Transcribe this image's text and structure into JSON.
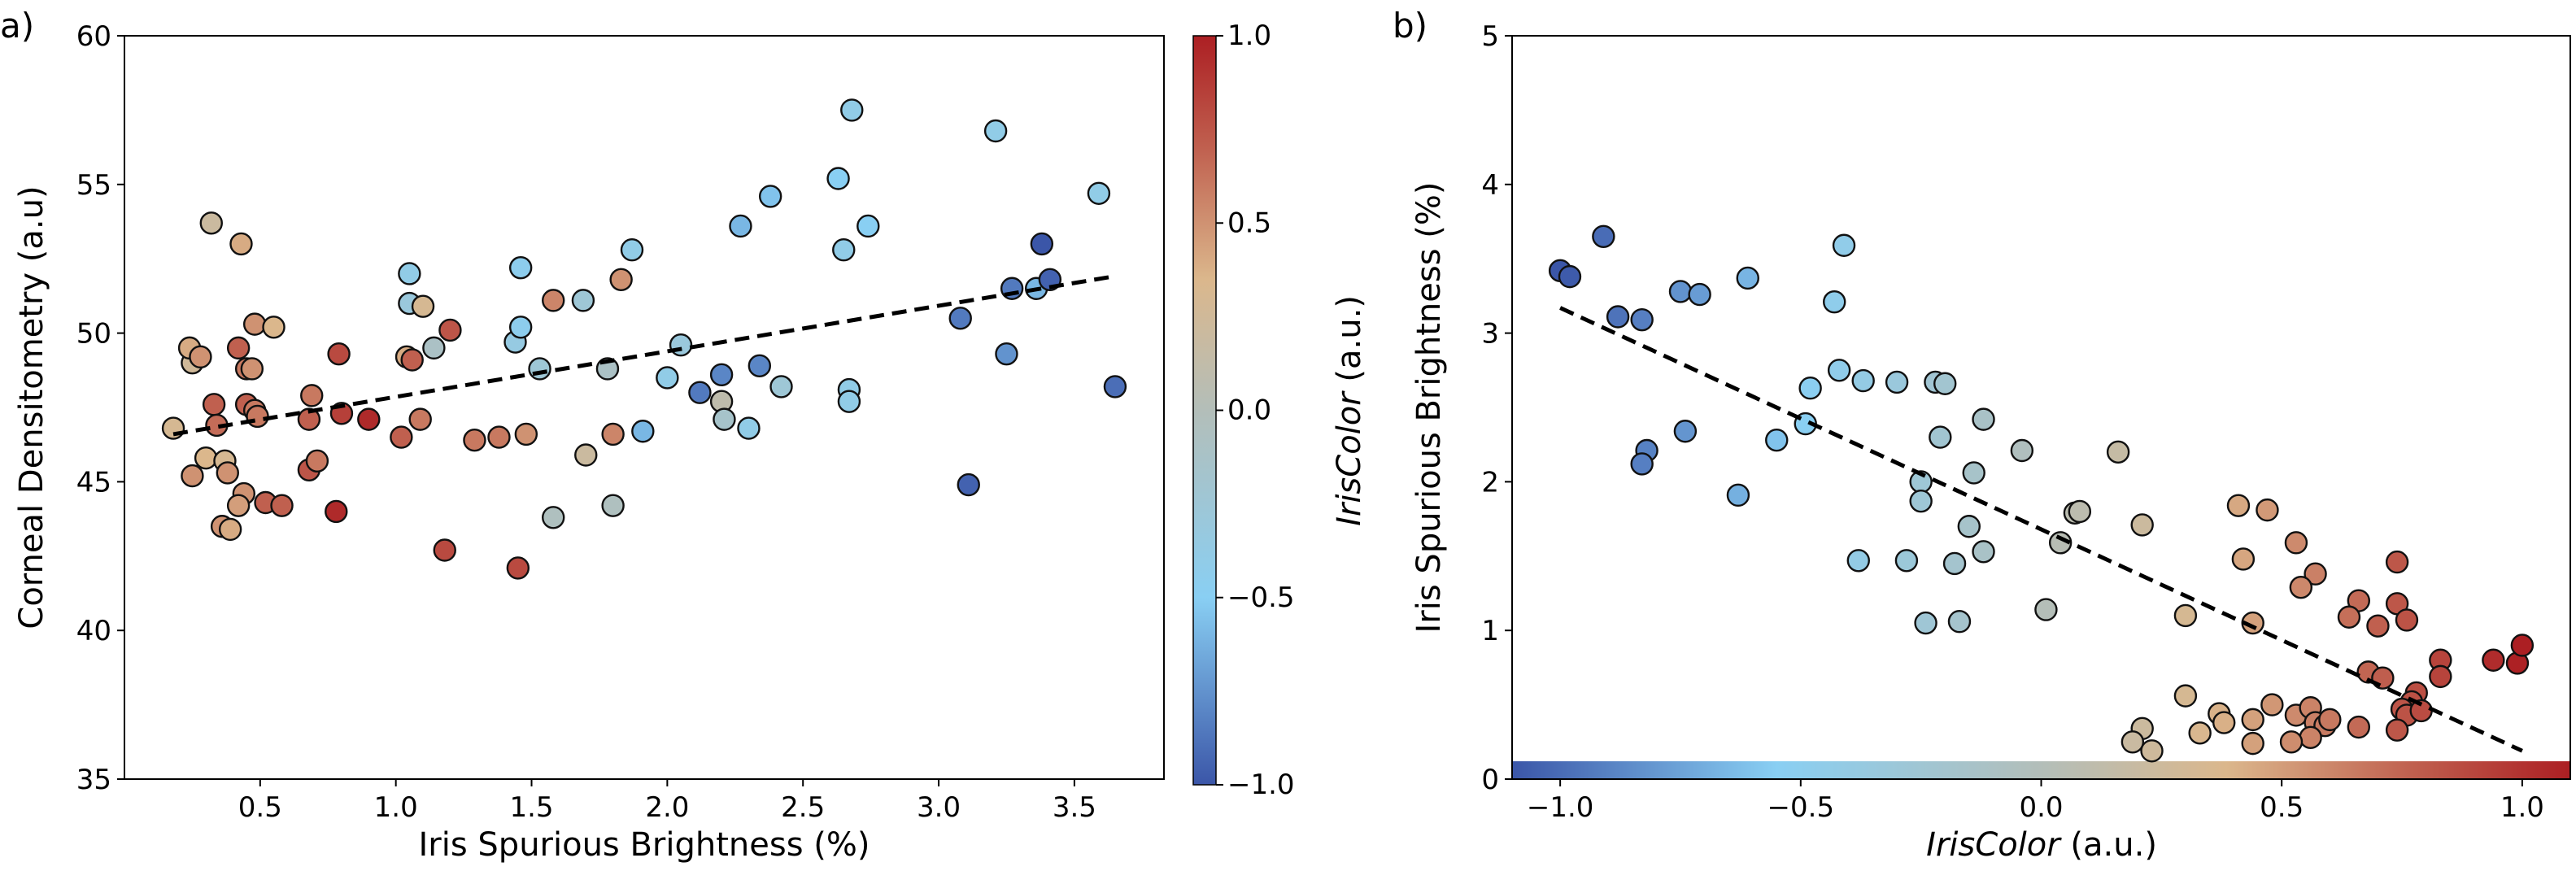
{
  "chart_data": [
    {
      "type": "scatter",
      "panel_label": "a)",
      "xlabel": "Iris Spurious Brightness (%)",
      "ylabel": "Corneal Densitometry (a.u)",
      "xlim": [
        0.0,
        3.83
      ],
      "ylim": [
        35,
        60
      ],
      "xticks": [
        0.5,
        1.0,
        1.5,
        2.0,
        2.5,
        3.0,
        3.5
      ],
      "xtick_labels": [
        "0.5",
        "1.0",
        "1.5",
        "2.0",
        "2.5",
        "3.0",
        "3.5"
      ],
      "yticks": [
        35,
        40,
        45,
        50,
        55,
        60
      ],
      "ytick_labels": [
        "35",
        "40",
        "45",
        "50",
        "55",
        "60"
      ],
      "grid": false,
      "color_by": "IrisColor",
      "trend_line": {
        "style": "dashed",
        "color": "#000000",
        "from": [
          0.18,
          46.6
        ],
        "to": [
          3.64,
          51.9
        ]
      },
      "colorbar": {
        "label_italic": "IrisColor",
        "label_rest": " (a.u.)",
        "range": [
          -1,
          1
        ],
        "ticks": [
          1.0,
          0.5,
          0.0,
          -0.5,
          -1.0
        ],
        "tick_labels": [
          "1.0",
          "0.5",
          "0.0",
          "−0.5",
          "−1.0"
        ],
        "placement": "right"
      },
      "points": [
        [
          0.18,
          46.8,
          0.3
        ],
        [
          0.25,
          49.0,
          0.25
        ],
        [
          0.24,
          49.5,
          0.4
        ],
        [
          0.28,
          49.2,
          0.5
        ],
        [
          0.32,
          53.7,
          0.2
        ],
        [
          0.43,
          53.0,
          0.4
        ],
        [
          0.25,
          45.2,
          0.5
        ],
        [
          0.3,
          45.8,
          0.35
        ],
        [
          0.37,
          45.7,
          0.3
        ],
        [
          0.38,
          45.3,
          0.5
        ],
        [
          0.36,
          43.5,
          0.5
        ],
        [
          0.39,
          43.4,
          0.4
        ],
        [
          0.44,
          44.6,
          0.5
        ],
        [
          0.42,
          44.2,
          0.45
        ],
        [
          0.33,
          47.6,
          0.7
        ],
        [
          0.34,
          46.9,
          0.65
        ],
        [
          0.42,
          49.5,
          0.7
        ],
        [
          0.45,
          48.8,
          0.6
        ],
        [
          0.47,
          48.8,
          0.5
        ],
        [
          0.45,
          47.6,
          0.7
        ],
        [
          0.48,
          47.4,
          0.6
        ],
        [
          0.49,
          47.2,
          0.6
        ],
        [
          0.48,
          50.3,
          0.5
        ],
        [
          0.55,
          50.2,
          0.35
        ],
        [
          0.52,
          44.3,
          0.7
        ],
        [
          0.58,
          44.2,
          0.7
        ],
        [
          0.68,
          47.1,
          0.7
        ],
        [
          0.69,
          47.9,
          0.6
        ],
        [
          0.68,
          45.4,
          0.75
        ],
        [
          0.71,
          45.7,
          0.6
        ],
        [
          0.78,
          44.0,
          0.95
        ],
        [
          0.79,
          49.3,
          0.8
        ],
        [
          0.8,
          47.3,
          0.85
        ],
        [
          0.9,
          47.1,
          0.95
        ],
        [
          1.02,
          46.5,
          0.7
        ],
        [
          1.04,
          49.2,
          0.4
        ],
        [
          1.06,
          49.1,
          0.7
        ],
        [
          1.05,
          52.0,
          -0.4
        ],
        [
          1.05,
          51.0,
          -0.3
        ],
        [
          1.1,
          50.9,
          0.3
        ],
        [
          1.14,
          49.5,
          -0.1
        ],
        [
          1.09,
          47.1,
          0.6
        ],
        [
          1.2,
          50.1,
          0.75
        ],
        [
          1.18,
          42.7,
          0.8
        ],
        [
          1.29,
          46.4,
          0.6
        ],
        [
          1.38,
          46.5,
          0.6
        ],
        [
          1.45,
          42.1,
          0.8
        ],
        [
          1.44,
          49.7,
          -0.35
        ],
        [
          1.46,
          50.2,
          -0.45
        ],
        [
          1.46,
          52.2,
          -0.45
        ],
        [
          1.48,
          46.6,
          0.5
        ],
        [
          1.53,
          48.8,
          -0.25
        ],
        [
          1.58,
          43.8,
          -0.05
        ],
        [
          1.58,
          51.1,
          0.55
        ],
        [
          1.69,
          51.1,
          -0.25
        ],
        [
          1.7,
          45.9,
          0.2
        ],
        [
          1.78,
          48.8,
          -0.1
        ],
        [
          1.8,
          46.6,
          0.55
        ],
        [
          1.8,
          44.2,
          -0.05
        ],
        [
          1.83,
          51.8,
          0.5
        ],
        [
          1.87,
          52.8,
          -0.4
        ],
        [
          1.91,
          46.7,
          -0.6
        ],
        [
          2.0,
          48.5,
          -0.4
        ],
        [
          2.05,
          49.6,
          -0.3
        ],
        [
          2.12,
          48.0,
          -0.85
        ],
        [
          2.2,
          48.6,
          -0.8
        ],
        [
          2.2,
          47.7,
          0.1
        ],
        [
          2.21,
          47.1,
          -0.15
        ],
        [
          2.27,
          53.6,
          -0.6
        ],
        [
          2.3,
          46.8,
          -0.4
        ],
        [
          2.34,
          48.9,
          -0.8
        ],
        [
          2.38,
          54.6,
          -0.55
        ],
        [
          2.42,
          48.2,
          -0.25
        ],
        [
          2.63,
          55.2,
          -0.5
        ],
        [
          2.65,
          52.8,
          -0.4
        ],
        [
          2.67,
          48.1,
          -0.4
        ],
        [
          2.67,
          47.7,
          -0.4
        ],
        [
          2.68,
          57.5,
          -0.4
        ],
        [
          2.74,
          53.6,
          -0.5
        ],
        [
          3.08,
          50.5,
          -0.85
        ],
        [
          3.11,
          44.9,
          -0.95
        ],
        [
          3.21,
          56.8,
          -0.4
        ],
        [
          3.25,
          49.3,
          -0.75
        ],
        [
          3.27,
          51.5,
          -0.85
        ],
        [
          3.36,
          51.5,
          -0.6
        ],
        [
          3.38,
          53.0,
          -1.0
        ],
        [
          3.41,
          51.8,
          -0.95
        ],
        [
          3.59,
          54.7,
          -0.4
        ],
        [
          3.65,
          48.2,
          -0.9
        ]
      ]
    },
    {
      "type": "scatter",
      "panel_label": "b)",
      "xlabel_italic": "IrisColor",
      "xlabel_rest": " (a.u.)",
      "ylabel": "Iris Spurious Brightness (%)",
      "xlim": [
        -1.1,
        1.1
      ],
      "ylim": [
        0,
        5
      ],
      "xticks": [
        -1.0,
        -0.5,
        0.0,
        0.5,
        1.0
      ],
      "xtick_labels": [
        "−1.0",
        "−0.5",
        "0.0",
        "0.5",
        "1.0"
      ],
      "yticks": [
        0,
        1,
        2,
        3,
        4,
        5
      ],
      "ytick_labels": [
        "0",
        "1",
        "2",
        "3",
        "4",
        "5"
      ],
      "grid": false,
      "color_by": "IrisColor",
      "colorbar": {
        "placement": "bottom-inside",
        "range": [
          -1,
          1
        ]
      },
      "trend_line": {
        "style": "dashed",
        "color": "#000000",
        "from": [
          -1.0,
          3.17
        ],
        "to": [
          1.0,
          0.19
        ]
      },
      "points": [
        [
          -1.0,
          3.42
        ],
        [
          -0.98,
          3.38
        ],
        [
          -0.91,
          3.65
        ],
        [
          -0.88,
          3.11
        ],
        [
          -0.83,
          3.09
        ],
        [
          -0.75,
          3.28
        ],
        [
          -0.71,
          3.26
        ],
        [
          -0.61,
          3.37
        ],
        [
          -0.43,
          3.21
        ],
        [
          -0.41,
          3.59
        ],
        [
          -0.82,
          2.21
        ],
        [
          -0.83,
          2.12
        ],
        [
          -0.74,
          2.34
        ],
        [
          -0.63,
          1.91
        ],
        [
          -0.55,
          2.28
        ],
        [
          -0.49,
          2.39
        ],
        [
          -0.48,
          2.63
        ],
        [
          -0.42,
          2.75
        ],
        [
          -0.37,
          2.68
        ],
        [
          -0.3,
          2.67
        ],
        [
          -0.22,
          2.67
        ],
        [
          -0.2,
          2.66
        ],
        [
          -0.21,
          2.3
        ],
        [
          -0.12,
          2.42
        ],
        [
          -0.25,
          2.0
        ],
        [
          -0.25,
          1.87
        ],
        [
          -0.14,
          2.06
        ],
        [
          -0.15,
          1.7
        ],
        [
          -0.12,
          1.53
        ],
        [
          -0.38,
          1.47
        ],
        [
          -0.28,
          1.47
        ],
        [
          -0.18,
          1.45
        ],
        [
          -0.24,
          1.05
        ],
        [
          -0.17,
          1.06
        ],
        [
          -0.04,
          2.21
        ],
        [
          0.16,
          2.2
        ],
        [
          0.07,
          1.79
        ],
        [
          0.08,
          1.8
        ],
        [
          0.04,
          1.59
        ],
        [
          0.21,
          1.71
        ],
        [
          0.01,
          1.14
        ],
        [
          0.3,
          1.1
        ],
        [
          0.44,
          1.05
        ],
        [
          0.41,
          1.84
        ],
        [
          0.47,
          1.81
        ],
        [
          0.42,
          1.48
        ],
        [
          0.53,
          1.59
        ],
        [
          0.57,
          1.38
        ],
        [
          0.54,
          1.29
        ],
        [
          0.74,
          1.46
        ],
        [
          0.74,
          1.18
        ],
        [
          0.66,
          1.2
        ],
        [
          0.64,
          1.09
        ],
        [
          0.7,
          1.03
        ],
        [
          0.76,
          1.07
        ],
        [
          0.83,
          0.8
        ],
        [
          0.83,
          0.69
        ],
        [
          0.94,
          0.8
        ],
        [
          0.99,
          0.78
        ],
        [
          1.0,
          0.9
        ],
        [
          0.68,
          0.72
        ],
        [
          0.71,
          0.68
        ],
        [
          0.78,
          0.58
        ],
        [
          0.77,
          0.52
        ],
        [
          0.75,
          0.47
        ],
        [
          0.76,
          0.43
        ],
        [
          0.79,
          0.46
        ],
        [
          0.74,
          0.33
        ],
        [
          0.66,
          0.35
        ],
        [
          0.3,
          0.56
        ],
        [
          0.37,
          0.44
        ],
        [
          0.38,
          0.38
        ],
        [
          0.33,
          0.31
        ],
        [
          0.21,
          0.34
        ],
        [
          0.19,
          0.25
        ],
        [
          0.23,
          0.19
        ],
        [
          0.44,
          0.4
        ],
        [
          0.44,
          0.24
        ],
        [
          0.48,
          0.5
        ],
        [
          0.53,
          0.43
        ],
        [
          0.56,
          0.48
        ],
        [
          0.57,
          0.38
        ],
        [
          0.59,
          0.36
        ],
        [
          0.6,
          0.4
        ],
        [
          0.56,
          0.28
        ],
        [
          0.52,
          0.25
        ]
      ]
    }
  ],
  "colormap": {
    "stops": [
      [
        -1,
        "#3b56a8"
      ],
      [
        -0.5,
        "#89cff3"
      ],
      [
        0,
        "#b3beb9"
      ],
      [
        0.35,
        "#dbb78c"
      ],
      [
        0.7,
        "#c0604f"
      ],
      [
        1,
        "#ac1f23"
      ]
    ]
  }
}
